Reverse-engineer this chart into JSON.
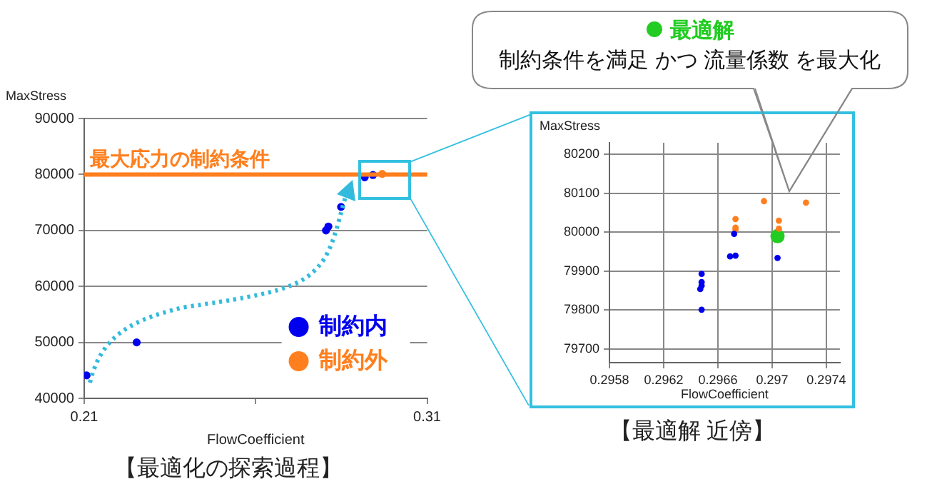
{
  "chart_data": [
    {
      "type": "scatter",
      "title": "【最適化の探索過程】",
      "xlabel": "FlowCoefficient",
      "ylabel": "MaxStress",
      "xlim": [
        0.21,
        0.31
      ],
      "xticks": [
        0.21,
        {
          "value": 0.26,
          "label": null
        },
        0.31
      ],
      "ylim": [
        40000,
        90000
      ],
      "yticks": [
        40000,
        50000,
        60000,
        70000,
        80000,
        90000
      ],
      "grid": "y",
      "legend": "bottom right",
      "marker": "circle",
      "ref_lines": [
        {
          "axis": "y",
          "value": 80000,
          "label": "最大応力の制約条件",
          "color": "#ff7f1e"
        }
      ],
      "series": [
        {
          "name": "制約内",
          "color": "#0000ee",
          "x": [
            0.2107,
            0.2253,
            0.2805,
            0.2812,
            0.2849,
            0.2918,
            0.2942
          ],
          "values": [
            44100,
            50000,
            70000,
            70700,
            74200,
            79500,
            79900
          ]
        },
        {
          "name": "制約外",
          "color": "#ff7f1e",
          "x": [
            0.2969
          ],
          "values": [
            80100
          ]
        }
      ]
    },
    {
      "type": "scatter",
      "title": "【最適解 近傍】",
      "xlabel": "FlowCoefficient",
      "ylabel": "MaxStress",
      "xlim": [
        0.2958,
        0.2975
      ],
      "xticks": [
        0.2958,
        0.2962,
        0.2966,
        0.297,
        0.2974
      ],
      "ylim": [
        79665,
        80230
      ],
      "yticks": [
        79700,
        79800,
        79900,
        80000,
        80100,
        80200
      ],
      "grid": true,
      "legend": "top",
      "marker": "circle",
      "annotations": [
        "制約条件を満足 かつ 流量係数 を最大化"
      ],
      "series": [
        {
          "color": "#0000ee",
          "x": [
            0.29648,
            0.29648,
            0.29648,
            0.29647,
            0.29648,
            0.29672,
            0.29669,
            0.29673,
            0.29704
          ],
          "values": [
            79893,
            79872,
            79863,
            79854,
            79801,
            79996,
            79938,
            79940,
            79934
          ]
        },
        {
          "color": "#ff7f1e",
          "x": [
            0.29694,
            0.29725,
            0.29673,
            0.29673,
            0.29673,
            0.29705,
            0.29705
          ],
          "values": [
            80080,
            80076,
            80034,
            80012,
            80007,
            80030,
            80009
          ]
        },
        {
          "name": "最適解",
          "color": "#22cc22",
          "x": [
            0.29704
          ],
          "values": [
            79990
          ]
        }
      ]
    }
  ]
}
